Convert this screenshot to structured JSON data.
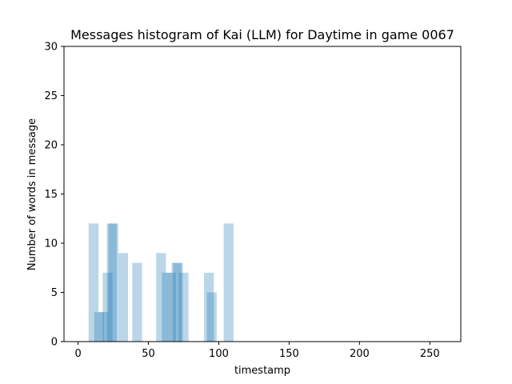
{
  "chart_data": {
    "type": "bar",
    "title": "Messages histogram of Kai (LLM) for Daytime in game 0067",
    "xlabel": "timestamp",
    "ylabel": "Number of words in message",
    "xlim": [
      -10,
      272
    ],
    "ylim": [
      0,
      30
    ],
    "xticks": [
      0,
      50,
      100,
      150,
      200,
      250
    ],
    "yticks": [
      0,
      5,
      10,
      15,
      20,
      25,
      30
    ],
    "bar_width": 7,
    "bar_color": "#1f77b4",
    "bar_opacity": 0.3,
    "grid": false,
    "bars": [
      {
        "x": 11,
        "value": 12
      },
      {
        "x": 15,
        "value": 3
      },
      {
        "x": 18,
        "value": 3
      },
      {
        "x": 21,
        "value": 7
      },
      {
        "x": 24,
        "value": 12
      },
      {
        "x": 25,
        "value": 12
      },
      {
        "x": 32,
        "value": 9
      },
      {
        "x": 42,
        "value": 8
      },
      {
        "x": 59,
        "value": 9
      },
      {
        "x": 63,
        "value": 7
      },
      {
        "x": 66,
        "value": 7
      },
      {
        "x": 70,
        "value": 8
      },
      {
        "x": 71,
        "value": 8
      },
      {
        "x": 75,
        "value": 7
      },
      {
        "x": 93,
        "value": 7
      },
      {
        "x": 95,
        "value": 5
      },
      {
        "x": 107,
        "value": 12
      }
    ]
  }
}
